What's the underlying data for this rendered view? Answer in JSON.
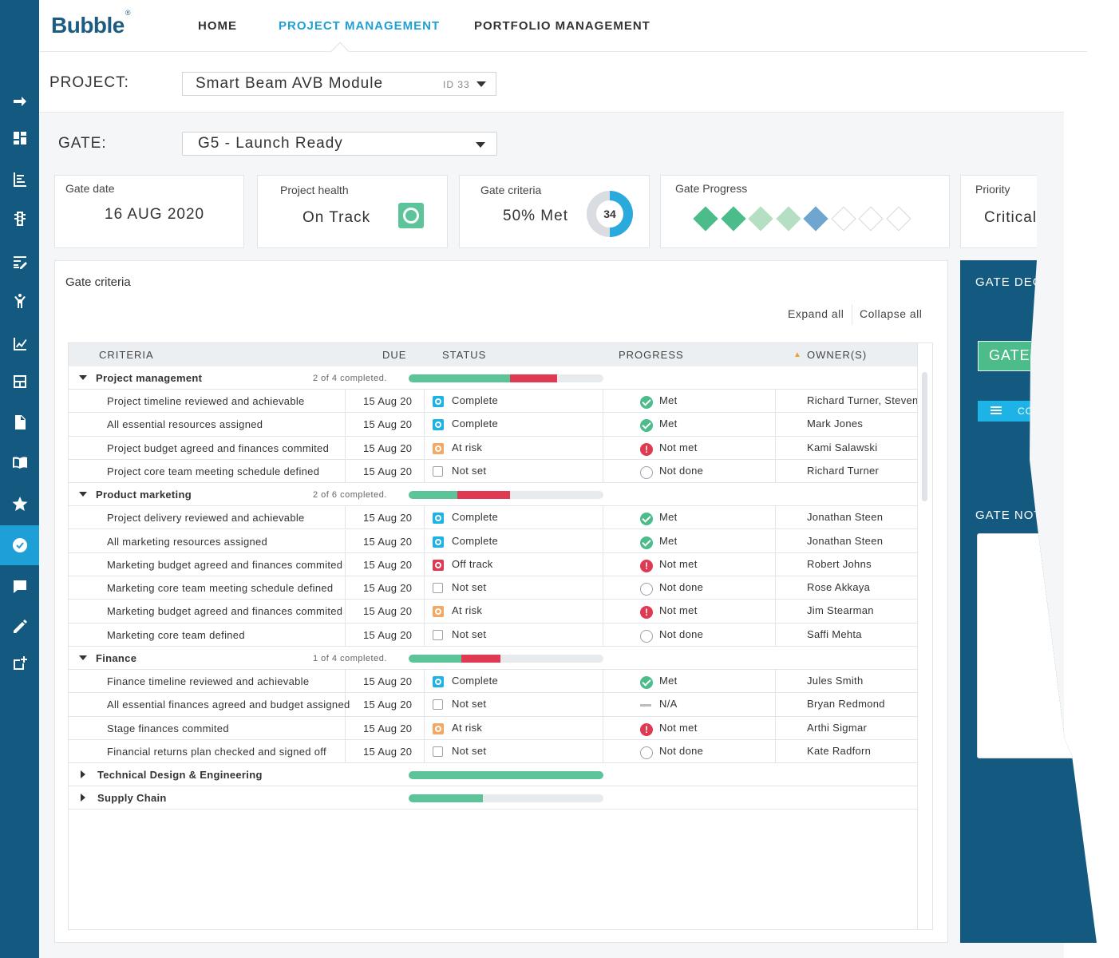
{
  "header": {
    "logo": "Bubble",
    "nav": [
      {
        "label": "HOME",
        "active": false
      },
      {
        "label": "PROJECT MANAGEMENT",
        "active": true
      },
      {
        "label": "PORTFOLIO MANAGEMENT",
        "active": false
      }
    ]
  },
  "sidebar": {
    "items": [
      {
        "icon": "arrow-right-icon"
      },
      {
        "icon": "dashboard-icon"
      },
      {
        "icon": "list-chart-icon"
      },
      {
        "icon": "traffic-light-icon"
      },
      {
        "icon": "edit-list-icon"
      },
      {
        "icon": "person-icon"
      },
      {
        "icon": "line-chart-icon"
      },
      {
        "icon": "layout-icon"
      },
      {
        "icon": "document-icon"
      },
      {
        "icon": "book-icon"
      },
      {
        "icon": "star-icon"
      },
      {
        "icon": "check-circle-icon",
        "active": true
      },
      {
        "icon": "chat-icon"
      },
      {
        "icon": "pencil-icon"
      },
      {
        "icon": "add-box-icon"
      }
    ]
  },
  "project": {
    "label": "PROJECT:",
    "value": "Smart Beam AVB Module",
    "id": "ID 33"
  },
  "gate": {
    "label": "GATE:",
    "value": "G5 - Launch Ready"
  },
  "cards": {
    "gate_date": {
      "title": "Gate date",
      "value": "16 AUG 2020"
    },
    "health": {
      "title": "Project health",
      "value": "On Track"
    },
    "criteria": {
      "title": "Gate criteria",
      "value": "50% Met",
      "count": "34",
      "fraction": 0.5
    },
    "progress": {
      "title": "Gate Progress",
      "steps": [
        "done",
        "done",
        "passed",
        "passed",
        "current",
        "empty",
        "empty",
        "empty"
      ]
    },
    "priority": {
      "title": "Priority",
      "value": "Critical"
    }
  },
  "criteria_panel": {
    "title": "Gate criteria",
    "expand_all": "Expand all",
    "collapse_all": "Collapse all",
    "columns": {
      "criteria": "CRITERIA",
      "due": "DUE",
      "status": "STATUS",
      "progress": "PROGRESS",
      "owners": "OWNER(S)"
    },
    "groups": [
      {
        "name": "Project management",
        "count": "2 of 4 completed.",
        "expanded": true,
        "met_frac": 0.52,
        "notmet_frac": 0.24,
        "items": [
          {
            "name": "Project timeline reviewed and achievable",
            "due": "15 Aug 20",
            "status": "Complete",
            "status_type": "complete",
            "progress": "Met",
            "progress_type": "met",
            "owner": "Richard Turner, Steven"
          },
          {
            "name": "All essential resources assigned",
            "due": "15 Aug 20",
            "status": "Complete",
            "status_type": "complete",
            "progress": "Met",
            "progress_type": "met",
            "owner": "Mark Jones"
          },
          {
            "name": "Project budget agreed and finances commited",
            "due": "15 Aug 20",
            "status": "At risk",
            "status_type": "atrisk",
            "progress": "Not met",
            "progress_type": "notmet",
            "owner": "Kami Salawski"
          },
          {
            "name": "Project core team meeting schedule defined",
            "due": "15 Aug 20",
            "status": "Not set",
            "status_type": "notset",
            "progress": "Not done",
            "progress_type": "notdone",
            "owner": "Richard Turner"
          }
        ]
      },
      {
        "name": "Product marketing",
        "count": "2 of 6 completed.",
        "expanded": true,
        "met_frac": 0.25,
        "notmet_frac": 0.27,
        "items": [
          {
            "name": "Project delivery reviewed and achievable",
            "due": "15 Aug 20",
            "status": "Complete",
            "status_type": "complete",
            "progress": "Met",
            "progress_type": "met",
            "owner": "Jonathan Steen"
          },
          {
            "name": "All marketing resources assigned",
            "due": "15 Aug 20",
            "status": "Complete",
            "status_type": "complete",
            "progress": "Met",
            "progress_type": "met",
            "owner": "Jonathan Steen"
          },
          {
            "name": "Marketing budget agreed and finances commited",
            "due": "15 Aug 20",
            "status": "Off track",
            "status_type": "offtrack",
            "progress": "Not met",
            "progress_type": "notmet",
            "owner": "Robert Johns"
          },
          {
            "name": "Marketing core team meeting schedule defined",
            "due": "15 Aug 20",
            "status": "Not set",
            "status_type": "notset",
            "progress": "Not done",
            "progress_type": "notdone",
            "owner": "Rose Akkaya"
          },
          {
            "name": "Marketing budget agreed and finances commited",
            "due": "15 Aug 20",
            "status": "At risk",
            "status_type": "atrisk",
            "progress": "Not met",
            "progress_type": "notmet",
            "owner": "Jim Stearman"
          },
          {
            "name": "Marketing core team defined",
            "due": "15 Aug 20",
            "status": "Not set",
            "status_type": "notset",
            "progress": "Not done",
            "progress_type": "notdone",
            "owner": "Saffi Mehta"
          }
        ]
      },
      {
        "name": "Finance",
        "count": "1 of 4 completed.",
        "expanded": true,
        "met_frac": 0.27,
        "notmet_frac": 0.2,
        "items": [
          {
            "name": "Finance timeline reviewed and achievable",
            "due": "15 Aug 20",
            "status": "Complete",
            "status_type": "complete",
            "progress": "Met",
            "progress_type": "met",
            "owner": "Jules Smith"
          },
          {
            "name": "All essential finances agreed and budget assigned",
            "due": "15 Aug 20",
            "status": "Not set",
            "status_type": "notset",
            "progress": "N/A",
            "progress_type": "na",
            "owner": "Bryan Redmond"
          },
          {
            "name": "Stage finances commited",
            "due": "15 Aug 20",
            "status": "At risk",
            "status_type": "atrisk",
            "progress": "Not met",
            "progress_type": "notmet",
            "owner": "Arthi Sigmar"
          },
          {
            "name": "Financial returns plan checked and signed off",
            "due": "15 Aug 20",
            "status": "Not set",
            "status_type": "notset",
            "progress": "Not done",
            "progress_type": "notdone",
            "owner": "Kate Radforn"
          }
        ]
      },
      {
        "name": "Technical Design & Engineering",
        "count": "",
        "expanded": false,
        "met_frac": 1.0,
        "notmet_frac": 0,
        "items": []
      },
      {
        "name": "Supply Chain",
        "count": "",
        "expanded": false,
        "met_frac": 0.38,
        "notmet_frac": 0,
        "items": []
      }
    ]
  },
  "gate_decision": {
    "title": "GATE DECISION",
    "gate_button": "GATE",
    "small_button": "CONFIRM",
    "notes_title": "GATE NOTES"
  },
  "colors": {
    "brand": "#145a80",
    "accent": "#1ea0d6",
    "met": "#5dc49a",
    "not_met": "#e03a52",
    "at_risk": "#f3a866"
  }
}
